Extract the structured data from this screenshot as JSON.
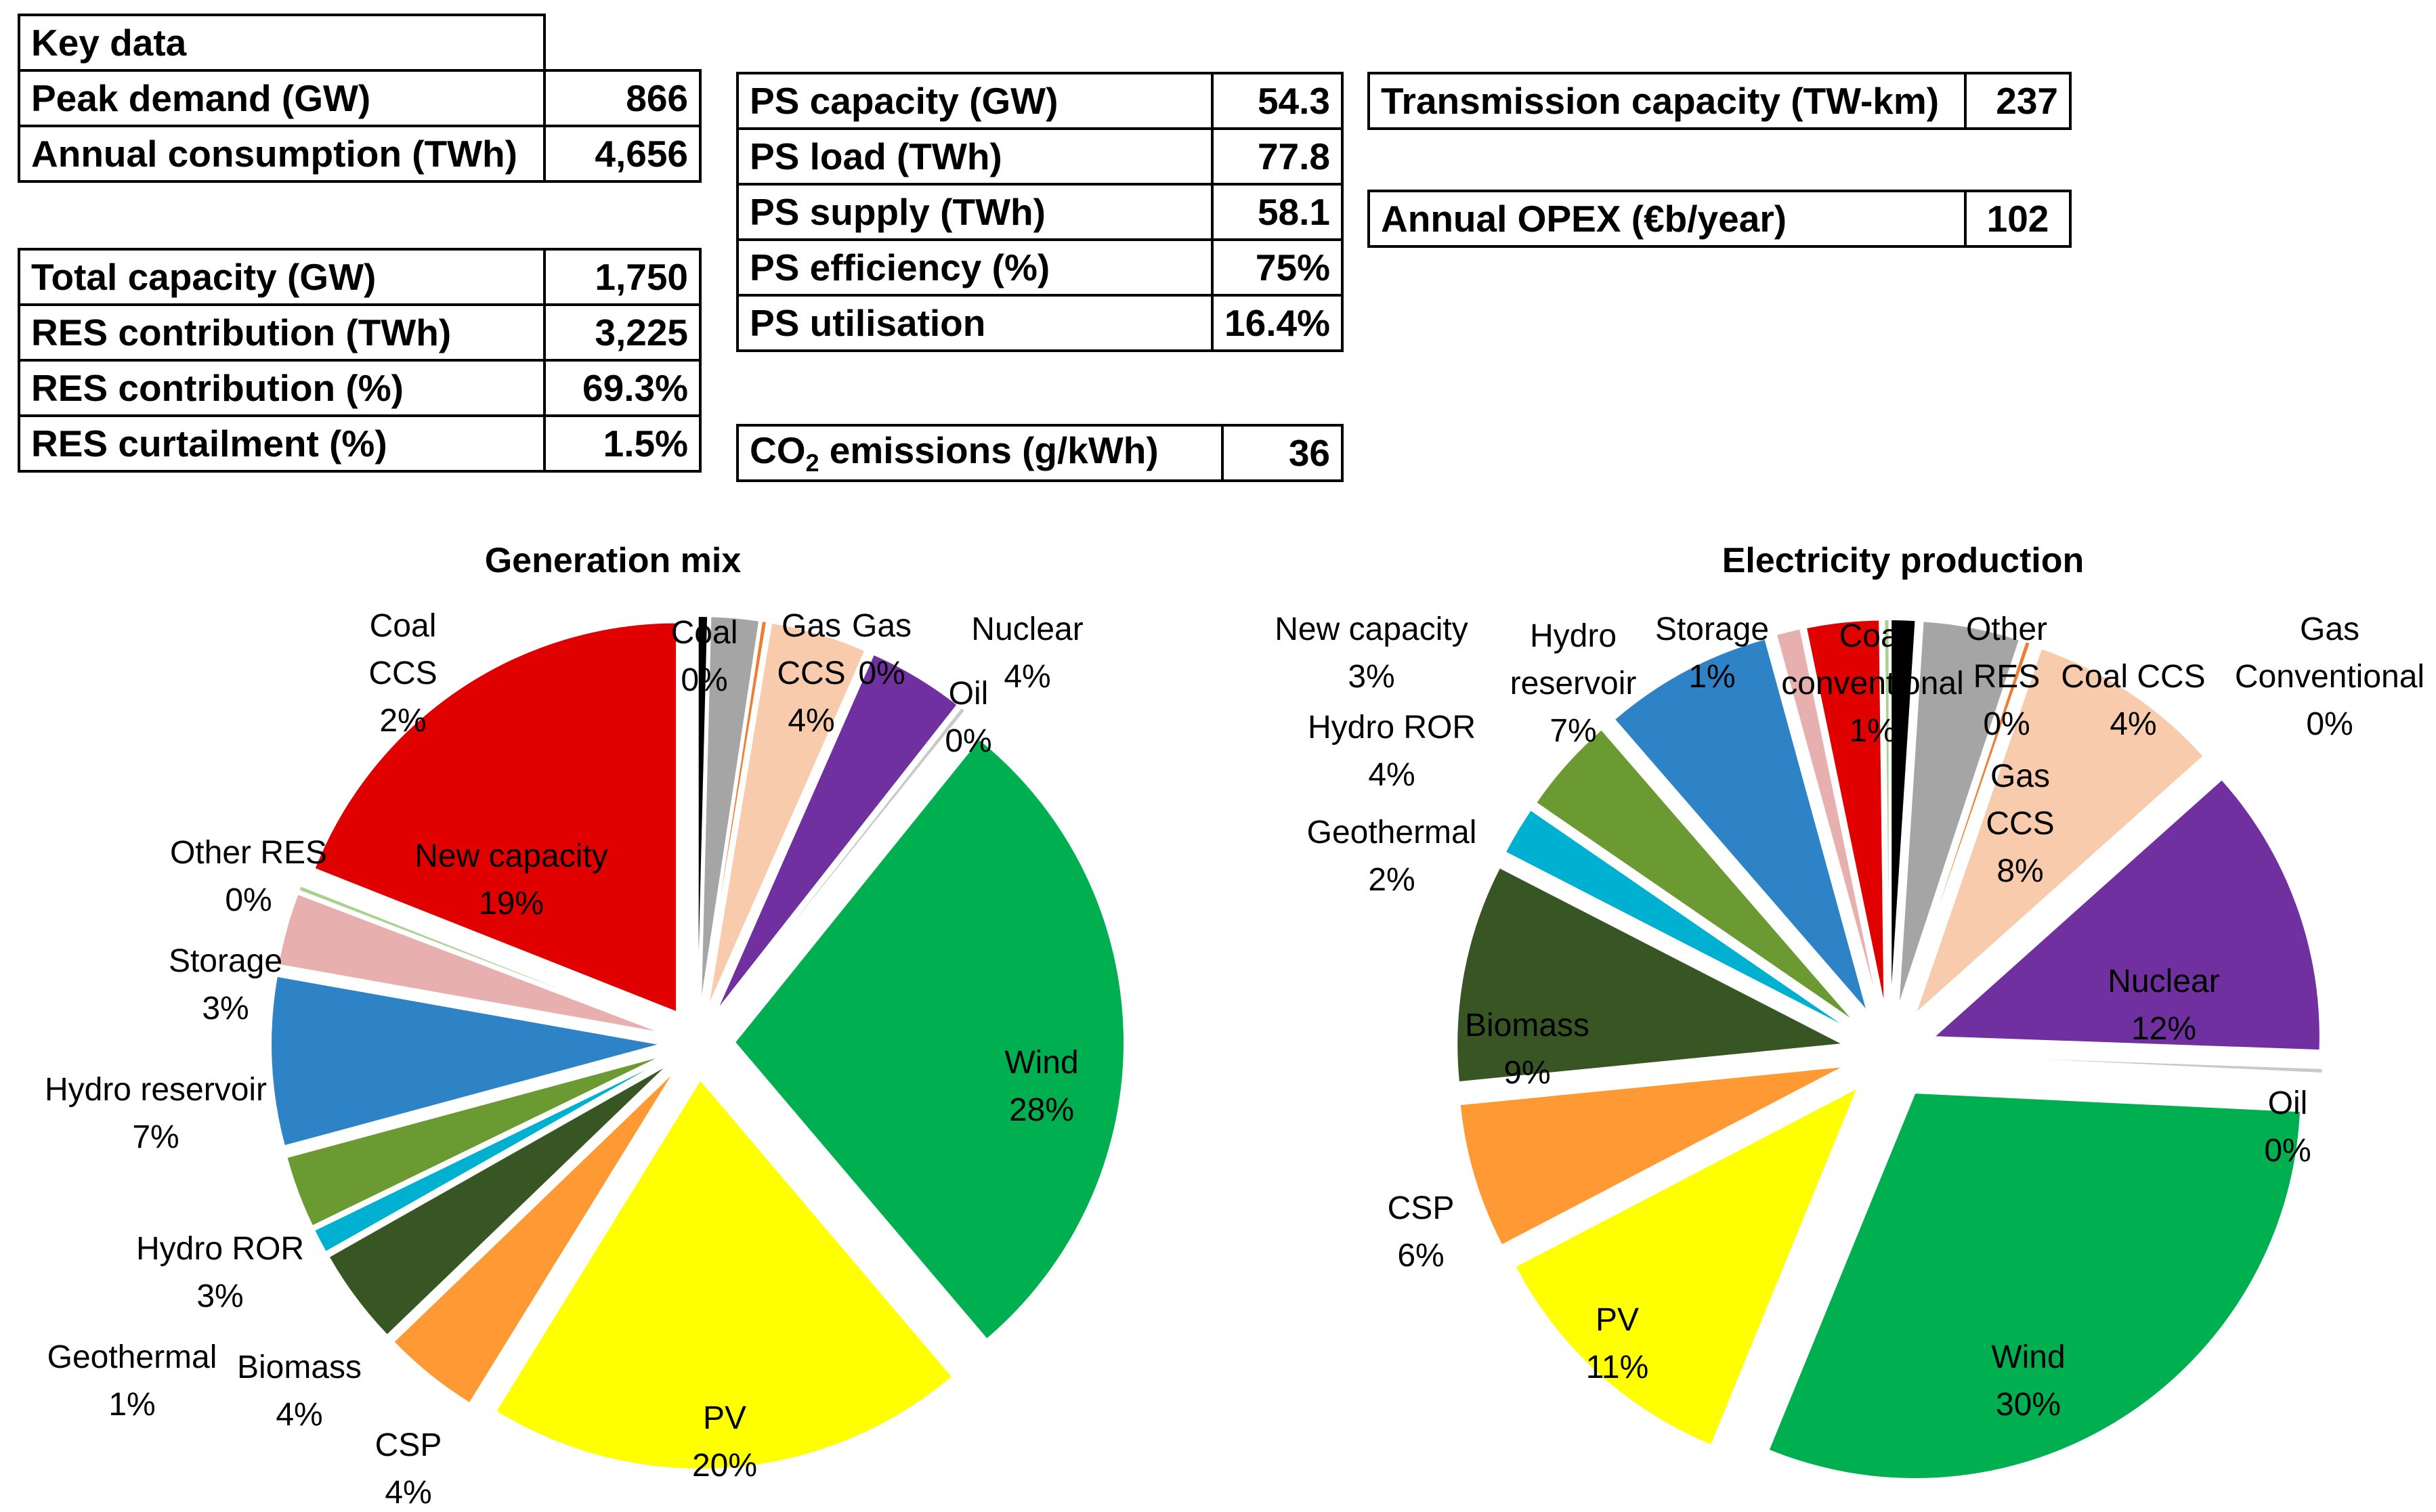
{
  "tables": {
    "key": {
      "title": "Key data",
      "rows": [
        {
          "label": "Peak demand (GW)",
          "value": "866"
        },
        {
          "label": "Annual consumption (TWh)",
          "value": "4,656"
        }
      ]
    },
    "capacity": {
      "rows": [
        {
          "label": "Total capacity (GW)",
          "value": "1,750"
        },
        {
          "label": "RES contribution (TWh)",
          "value": "3,225"
        },
        {
          "label": "RES contribution (%)",
          "value": "69.3%"
        },
        {
          "label": "RES curtailment (%)",
          "value": "1.5%"
        }
      ]
    },
    "ps": {
      "rows": [
        {
          "label": "PS capacity (GW)",
          "value": "54.3"
        },
        {
          "label": "PS load (TWh)",
          "value": "77.8"
        },
        {
          "label": "PS supply (TWh)",
          "value": "58.1"
        },
        {
          "label": "PS efficiency (%)",
          "value": "75%"
        },
        {
          "label": "PS utilisation",
          "value": "16.4%"
        }
      ]
    },
    "co2": {
      "label_prefix": "CO",
      "label_sub": "2",
      "label_suffix": " emissions (g/kWh)",
      "value": "36"
    },
    "transmission": {
      "label": "Transmission capacity (TW-km)",
      "value": "237"
    },
    "opex": {
      "label": "Annual OPEX (€b/year)",
      "value": "102"
    }
  },
  "chart_data": [
    {
      "type": "pie",
      "title": "Generation mix",
      "exploded": true,
      "slices": [
        {
          "name": "Coal",
          "value": 0.4,
          "label": "0%",
          "color": "#000000"
        },
        {
          "name": "Coal CCS",
          "value": 2,
          "label": "2%",
          "color": "#a5a5a5"
        },
        {
          "name": "Gas Conventional",
          "value": 0.2,
          "label": "0%",
          "color": "#ed7d31"
        },
        {
          "name": "Gas CCS",
          "value": 4,
          "label": "4%",
          "color": "#f8cbad"
        },
        {
          "name": "Nuclear",
          "value": 4,
          "label": "4%",
          "color": "#7030a0"
        },
        {
          "name": "Oil",
          "value": 0.2,
          "label": "0%",
          "color": "#c9c9c9"
        },
        {
          "name": "Wind",
          "value": 28,
          "label": "28%",
          "color": "#00b050"
        },
        {
          "name": "PV",
          "value": 20,
          "label": "20%",
          "color": "#ffff00"
        },
        {
          "name": "CSP",
          "value": 4,
          "label": "4%",
          "color": "#ff9933"
        },
        {
          "name": "Biomass",
          "value": 4,
          "label": "4%",
          "color": "#375623"
        },
        {
          "name": "Geothermal",
          "value": 1,
          "label": "1%",
          "color": "#00b0d0"
        },
        {
          "name": "Hydro ROR",
          "value": 3,
          "label": "3%",
          "color": "#6b9a33"
        },
        {
          "name": "Hydro reservoir",
          "value": 7,
          "label": "7%",
          "color": "#2e83c6"
        },
        {
          "name": "Storage",
          "value": 3,
          "label": "3%",
          "color": "#e8afaf"
        },
        {
          "name": "Other RES",
          "value": 0.2,
          "label": "0%",
          "color": "#a9d18e"
        },
        {
          "name": "New capacity",
          "value": 19,
          "label": "19%",
          "color": "#e00000"
        }
      ]
    },
    {
      "type": "pie",
      "title": "Electricity production",
      "exploded": true,
      "slices": [
        {
          "name": "Coal conventional",
          "value": 1,
          "label": "1%",
          "color": "#000000"
        },
        {
          "name": "Coal CCS",
          "value": 4,
          "label": "4%",
          "color": "#a5a5a5"
        },
        {
          "name": "Gas Conventional",
          "value": 0.2,
          "label": "0%",
          "color": "#ed7d31"
        },
        {
          "name": "Gas CCS",
          "value": 8,
          "label": "8%",
          "color": "#f8cbad"
        },
        {
          "name": "Nuclear",
          "value": 12,
          "label": "12%",
          "color": "#7030a0"
        },
        {
          "name": "Oil",
          "value": 0.2,
          "label": "0%",
          "color": "#c9c9c9"
        },
        {
          "name": "Wind",
          "value": 30,
          "label": "30%",
          "color": "#00b050"
        },
        {
          "name": "PV",
          "value": 11,
          "label": "11%",
          "color": "#ffff00"
        },
        {
          "name": "CSP",
          "value": 6,
          "label": "6%",
          "color": "#ff9933"
        },
        {
          "name": "Biomass",
          "value": 9,
          "label": "9%",
          "color": "#375623"
        },
        {
          "name": "Geothermal",
          "value": 2,
          "label": "2%",
          "color": "#00b0d0"
        },
        {
          "name": "Hydro ROR",
          "value": 4,
          "label": "4%",
          "color": "#6b9a33"
        },
        {
          "name": "Hydro reservoir",
          "value": 7,
          "label": "7%",
          "color": "#2e83c6"
        },
        {
          "name": "Storage",
          "value": 1,
          "label": "1%",
          "color": "#e8afaf"
        },
        {
          "name": "New capacity",
          "value": 3,
          "label": "3%",
          "color": "#e00000"
        },
        {
          "name": "Other RES",
          "value": 0.2,
          "label": "0%",
          "color": "#a9d18e"
        }
      ]
    }
  ]
}
